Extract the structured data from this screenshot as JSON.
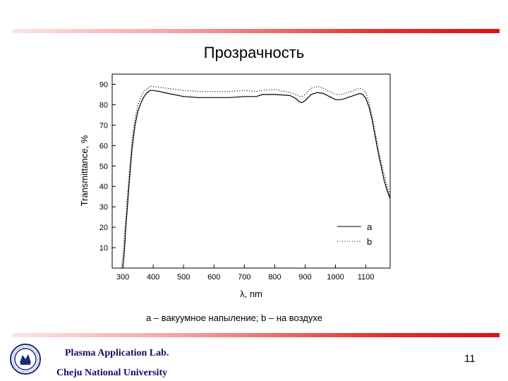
{
  "slide": {
    "title": "Прозрачность",
    "caption": "a – вакуумное напыление; b – на воздухе",
    "lab": "Plasma Application Lab.",
    "university": "Cheju National University",
    "page_number": "11",
    "accent_color": "#e01010",
    "logo_icon": "university-seal-icon"
  },
  "chart_data": {
    "type": "line",
    "xlabel": "λ, nm",
    "ylabel": "Transmittance, %",
    "xlim": [
      265,
      1180
    ],
    "ylim": [
      0,
      95
    ],
    "x_ticks": [
      300,
      400,
      500,
      600,
      700,
      800,
      900,
      1000,
      1100
    ],
    "y_ticks": [
      10,
      20,
      30,
      40,
      50,
      60,
      70,
      80,
      90
    ],
    "grid": false,
    "legend_position": "bottom-right",
    "series": [
      {
        "name": "a",
        "style": "solid",
        "x": [
          300,
          305,
          310,
          320,
          330,
          340,
          350,
          360,
          370,
          380,
          390,
          400,
          420,
          450,
          500,
          550,
          600,
          650,
          700,
          740,
          760,
          800,
          850,
          870,
          880,
          890,
          900,
          910,
          920,
          940,
          960,
          980,
          1000,
          1020,
          1040,
          1060,
          1080,
          1090,
          1100,
          1110,
          1120,
          1130,
          1140,
          1150,
          1160,
          1170,
          1180
        ],
        "y": [
          0,
          8,
          20,
          40,
          58,
          70,
          77,
          81,
          84,
          86,
          87,
          87,
          86.5,
          85.5,
          84,
          83.5,
          83.5,
          83.5,
          84,
          84,
          85,
          85,
          84.5,
          83,
          81.5,
          81,
          82,
          83.5,
          85,
          86,
          85.5,
          84,
          82.5,
          82.5,
          83.5,
          84.5,
          85.5,
          85,
          83,
          79,
          73,
          65,
          57,
          50,
          43,
          38,
          34
        ]
      },
      {
        "name": "b",
        "style": "dotted",
        "x": [
          295,
          300,
          310,
          320,
          330,
          340,
          350,
          360,
          370,
          380,
          390,
          400,
          420,
          450,
          500,
          550,
          600,
          650,
          700,
          740,
          760,
          800,
          850,
          870,
          880,
          890,
          900,
          910,
          920,
          940,
          960,
          980,
          1000,
          1020,
          1040,
          1060,
          1080,
          1090,
          1100,
          1110,
          1120,
          1130,
          1140,
          1150,
          1160,
          1170,
          1180
        ],
        "y": [
          0,
          6,
          25,
          45,
          62,
          73,
          80,
          84,
          86.5,
          88,
          89,
          89,
          88.5,
          88,
          87,
          86.5,
          86.5,
          86.5,
          87,
          86.5,
          87,
          87.5,
          86,
          85,
          84,
          84,
          85,
          86.5,
          88,
          89,
          88,
          86.5,
          85,
          85,
          86,
          87,
          88,
          87.5,
          86,
          81,
          75,
          67,
          59,
          52,
          46,
          40,
          35
        ]
      }
    ]
  }
}
